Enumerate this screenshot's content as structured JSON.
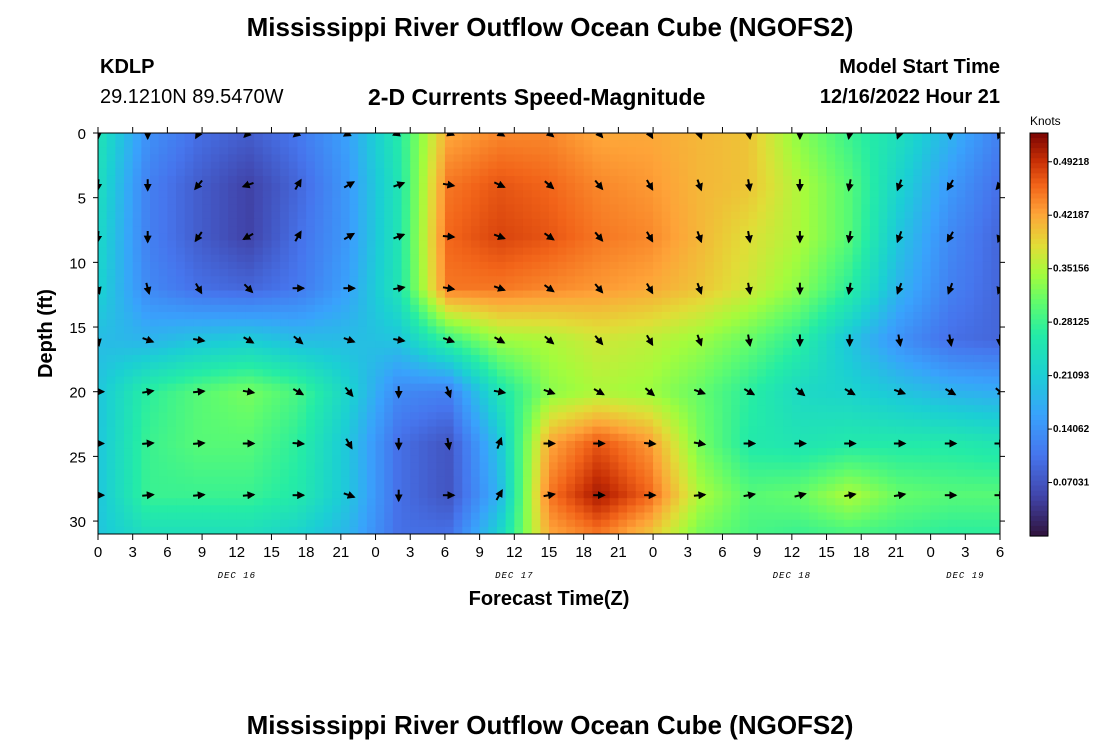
{
  "header": {
    "title": "Mississippi River Outflow Ocean Cube (NGOFS2)",
    "station_id": "KDLP",
    "station_coords": "29.1210N  89.5470W",
    "subtitle": "2-D Currents Speed-Magnitude",
    "model_start_label": "Model Start Time",
    "model_start_time": "12/16/2022 Hour 21"
  },
  "second_panel": {
    "title": "Mississippi River Outflow Ocean Cube (NGOFS2)"
  },
  "chart_data": {
    "type": "heatmap",
    "title": "2-D Currents Speed-Magnitude",
    "xlabel": "Forecast Time(Z)",
    "ylabel": "Depth (ft)",
    "x_unit": "forecast hour",
    "xlim": [
      0,
      78
    ],
    "ylim": [
      31,
      0
    ],
    "y_ticks": [
      0,
      5,
      10,
      15,
      20,
      25,
      30
    ],
    "x_tick_labels": [
      "0",
      "3",
      "6",
      "9",
      "12",
      "15",
      "18",
      "21",
      "0",
      "3",
      "6",
      "9",
      "12",
      "15",
      "18",
      "21",
      "0",
      "3",
      "6",
      "9",
      "12",
      "15",
      "18",
      "21",
      "0",
      "3",
      "6"
    ],
    "date_labels": [
      {
        "label": "DEC 16",
        "hour": 12
      },
      {
        "label": "DEC 17",
        "hour": 36
      },
      {
        "label": "DEC 18",
        "hour": 60
      },
      {
        "label": "DEC 19",
        "hour": 75
      }
    ],
    "colorbar": {
      "title": "Knots",
      "min": 0.0,
      "max": 0.53,
      "tick_labels": [
        "0.49218",
        "0.42187",
        "0.35156",
        "0.28125",
        "0.21093",
        "0.14062",
        "0.07031"
      ],
      "tick_values": [
        0.49218,
        0.42187,
        0.35156,
        0.28125,
        0.21093,
        0.14062,
        0.07031
      ]
    },
    "grid_x": [
      0,
      4.3,
      8.7,
      13,
      17.3,
      21.7,
      26,
      30.3,
      34.7,
      39,
      43.3,
      47.7,
      52,
      56.3,
      60.7,
      65,
      69.3,
      73.7,
      78
    ],
    "grid_depth": [
      0,
      4,
      8,
      12,
      16,
      20,
      24,
      28,
      31
    ],
    "speed": [
      [
        0.25,
        0.14,
        0.1,
        0.08,
        0.11,
        0.16,
        0.26,
        0.42,
        0.44,
        0.44,
        0.42,
        0.42,
        0.41,
        0.4,
        0.33,
        0.28,
        0.24,
        0.18,
        0.12
      ],
      [
        0.24,
        0.12,
        0.08,
        0.05,
        0.09,
        0.15,
        0.25,
        0.45,
        0.47,
        0.46,
        0.44,
        0.43,
        0.41,
        0.4,
        0.35,
        0.3,
        0.22,
        0.15,
        0.1
      ],
      [
        0.23,
        0.12,
        0.08,
        0.05,
        0.1,
        0.15,
        0.25,
        0.46,
        0.48,
        0.47,
        0.45,
        0.44,
        0.41,
        0.38,
        0.35,
        0.3,
        0.2,
        0.13,
        0.09
      ],
      [
        0.22,
        0.13,
        0.1,
        0.09,
        0.11,
        0.16,
        0.25,
        0.45,
        0.45,
        0.44,
        0.43,
        0.42,
        0.4,
        0.37,
        0.33,
        0.27,
        0.18,
        0.12,
        0.09
      ],
      [
        0.19,
        0.18,
        0.2,
        0.21,
        0.19,
        0.19,
        0.2,
        0.28,
        0.34,
        0.35,
        0.37,
        0.36,
        0.34,
        0.31,
        0.27,
        0.2,
        0.14,
        0.1,
        0.09
      ],
      [
        0.2,
        0.27,
        0.3,
        0.32,
        0.29,
        0.22,
        0.13,
        0.12,
        0.25,
        0.33,
        0.35,
        0.34,
        0.31,
        0.27,
        0.23,
        0.22,
        0.2,
        0.18,
        0.17
      ],
      [
        0.2,
        0.28,
        0.3,
        0.3,
        0.27,
        0.2,
        0.1,
        0.07,
        0.2,
        0.42,
        0.47,
        0.43,
        0.32,
        0.26,
        0.25,
        0.26,
        0.26,
        0.26,
        0.25
      ],
      [
        0.2,
        0.28,
        0.28,
        0.28,
        0.26,
        0.2,
        0.1,
        0.07,
        0.18,
        0.45,
        0.51,
        0.46,
        0.35,
        0.3,
        0.31,
        0.35,
        0.31,
        0.3,
        0.3
      ],
      [
        0.2,
        0.24,
        0.24,
        0.24,
        0.22,
        0.18,
        0.1,
        0.1,
        0.22,
        0.42,
        0.45,
        0.4,
        0.32,
        0.29,
        0.28,
        0.29,
        0.28,
        0.27,
        0.27
      ]
    ],
    "direction_deg": [
      [
        180,
        180,
        210,
        225,
        230,
        240,
        250,
        110,
        120,
        130,
        140,
        150,
        160,
        170,
        180,
        190,
        200,
        180,
        200
      ],
      [
        185,
        180,
        220,
        250,
        30,
        60,
        70,
        100,
        115,
        130,
        140,
        150,
        160,
        170,
        180,
        190,
        200,
        210,
        220
      ],
      [
        185,
        180,
        215,
        240,
        30,
        60,
        70,
        95,
        110,
        125,
        140,
        150,
        160,
        170,
        180,
        190,
        200,
        210,
        200
      ],
      [
        165,
        165,
        150,
        135,
        90,
        90,
        80,
        100,
        110,
        125,
        140,
        150,
        160,
        170,
        180,
        190,
        200,
        200,
        200
      ],
      [
        170,
        110,
        100,
        120,
        130,
        110,
        100,
        110,
        120,
        130,
        140,
        150,
        160,
        170,
        180,
        180,
        170,
        170,
        180
      ],
      [
        90,
        80,
        85,
        100,
        120,
        140,
        180,
        160,
        100,
        110,
        120,
        130,
        110,
        120,
        130,
        120,
        110,
        120,
        130
      ],
      [
        90,
        85,
        85,
        90,
        95,
        150,
        180,
        170,
        20,
        90,
        90,
        95,
        100,
        90,
        90,
        90,
        90,
        90,
        90
      ],
      [
        90,
        85,
        85,
        85,
        90,
        110,
        180,
        90,
        30,
        80,
        90,
        90,
        85,
        80,
        75,
        80,
        80,
        90,
        90
      ],
      [
        90,
        90,
        90,
        90,
        90,
        90,
        90,
        90,
        90,
        90,
        90,
        90,
        90,
        90,
        90,
        90,
        90,
        90,
        90
      ]
    ]
  }
}
